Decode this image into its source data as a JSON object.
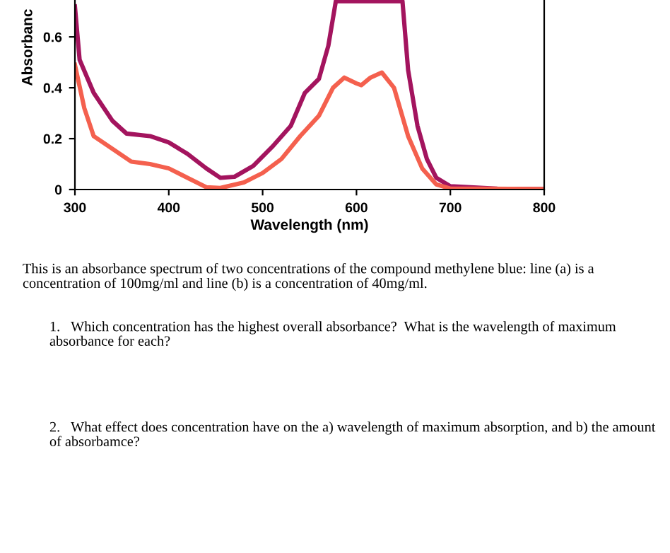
{
  "chart_data": {
    "type": "line",
    "xlabel": "Wavelength (nm)",
    "ylabel": "Absorbanc",
    "xlim": [
      300,
      800
    ],
    "ylim": [
      0,
      0.745
    ],
    "xticks": [
      300,
      400,
      500,
      600,
      700,
      800
    ],
    "yticks": [
      0,
      0.2,
      0.4,
      0.6
    ],
    "grid": false,
    "legend": false,
    "marker": "none",
    "line_style": "solid",
    "series": [
      {
        "color": "#a3145e",
        "x": [
          300,
          305,
          320,
          340,
          355,
          380,
          400,
          420,
          440,
          455,
          470,
          490,
          510,
          530,
          545,
          560,
          570,
          578,
          649,
          655,
          665,
          675,
          685,
          700,
          750,
          800
        ],
        "values": [
          0.72,
          0.51,
          0.38,
          0.27,
          0.22,
          0.21,
          0.185,
          0.14,
          0.083,
          0.046,
          0.05,
          0.093,
          0.167,
          0.25,
          0.38,
          0.435,
          0.565,
          0.74,
          0.74,
          0.47,
          0.25,
          0.12,
          0.046,
          0.013,
          0.003,
          0.002
        ]
      },
      {
        "color": "#f4604e",
        "x": [
          300,
          310,
          320,
          340,
          360,
          380,
          400,
          420,
          440,
          455,
          480,
          500,
          520,
          540,
          560,
          575,
          587,
          600,
          605,
          615,
          627,
          640,
          655,
          670,
          685,
          700,
          800
        ],
        "values": [
          0.49,
          0.32,
          0.21,
          0.16,
          0.11,
          0.1,
          0.083,
          0.046,
          0.009,
          0.006,
          0.028,
          0.065,
          0.12,
          0.21,
          0.29,
          0.4,
          0.44,
          0.417,
          0.41,
          0.44,
          0.46,
          0.4,
          0.21,
          0.083,
          0.02,
          0.004,
          0.002
        ]
      }
    ],
    "annotations": [
      "This is an absorbance spectrum of two concentrations of the compound methylene blue: line (a) is a concentration of 100mg/ml and line (b) is a concentration of 40mg/ml.",
      "1.   Which concentration has the highest overall absorbance?  What is the wavelength of maximum absorbance for each?",
      "2.   What effect does concentration have on the a) wavelength of maximum absorption, and b) the amount of absorbamce?"
    ]
  }
}
